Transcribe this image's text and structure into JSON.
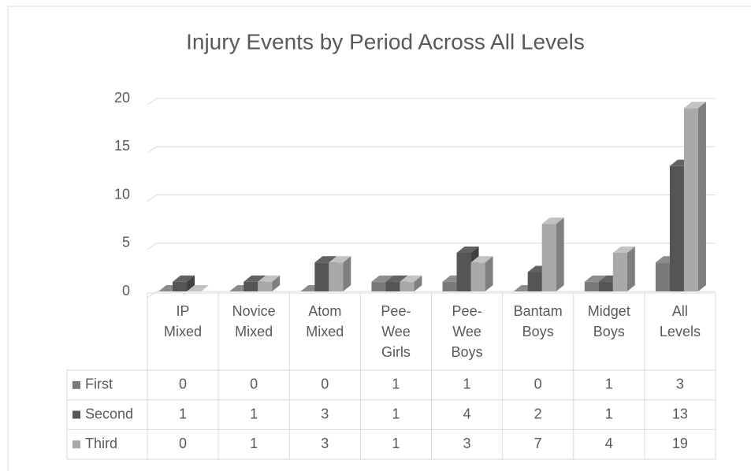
{
  "chart_data": {
    "type": "bar3d",
    "title": "Injury Events by Period Across All Levels",
    "categories": [
      "IP Mixed",
      "Novice Mixed",
      "Atom Mixed",
      "Pee-Wee Girls",
      "Pee-Wee Boys",
      "Bantam Boys",
      "Midget Boys",
      "All Levels"
    ],
    "series": [
      {
        "name": "First",
        "color": "#7a7a7a",
        "values": [
          0,
          0,
          0,
          1,
          1,
          0,
          1,
          3
        ]
      },
      {
        "name": "Second",
        "color": "#555555",
        "values": [
          1,
          1,
          3,
          1,
          4,
          2,
          1,
          13
        ]
      },
      {
        "name": "Third",
        "color": "#a9a9a9",
        "values": [
          0,
          1,
          3,
          1,
          3,
          7,
          4,
          19
        ]
      }
    ],
    "ylim": [
      0,
      20
    ],
    "yticks": [
      0,
      5,
      10,
      15,
      20
    ],
    "grid": true,
    "data_table": true
  }
}
